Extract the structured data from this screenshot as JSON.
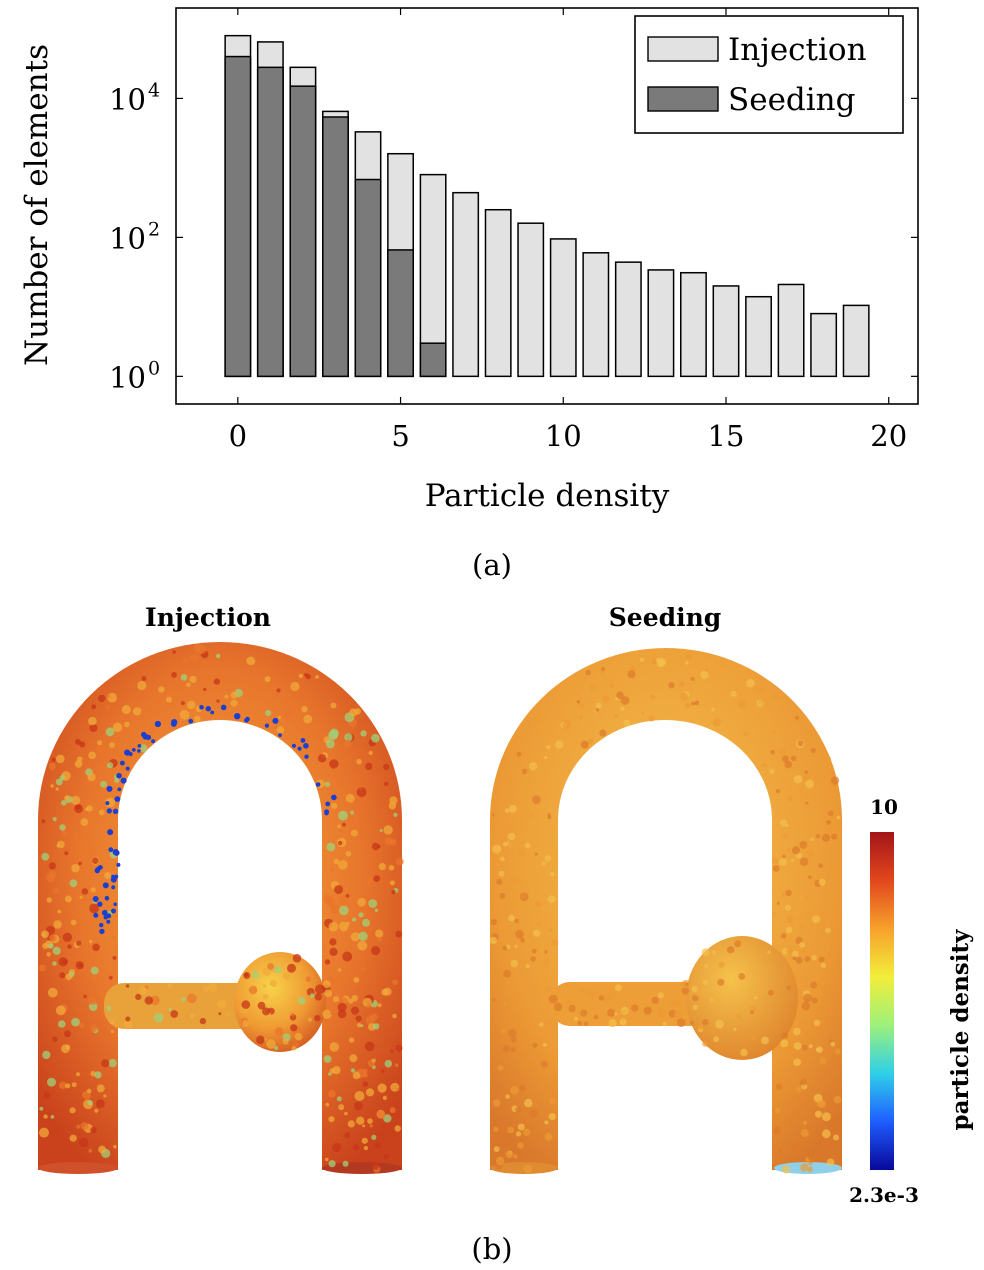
{
  "chart_data": {
    "type": "bar",
    "yscale": "log",
    "xlabel": "Particle density",
    "ylabel": "Number of elements",
    "xlim": [
      -1.9,
      20.9
    ],
    "ylim": [
      0.4,
      200000
    ],
    "xticks": [
      0,
      5,
      10,
      15,
      20
    ],
    "yticks": [
      {
        "value": 1,
        "base": "10",
        "exp": "0"
      },
      {
        "value": 100,
        "base": "10",
        "exp": "2"
      },
      {
        "value": 10000,
        "base": "10",
        "exp": "4"
      }
    ],
    "legend": {
      "position": "top-right"
    },
    "x": [
      0,
      1,
      2,
      3,
      4,
      5,
      6,
      7,
      8,
      9,
      10,
      11,
      12,
      13,
      14,
      15,
      16,
      17,
      18,
      19
    ],
    "series": [
      {
        "name": "Injection",
        "color": "#e2e2e2",
        "values": [
          80000,
          65000,
          28000,
          6500,
          3300,
          1600,
          800,
          440,
          250,
          160,
          95,
          60,
          44,
          34,
          31,
          20,
          14,
          21,
          8,
          10.5
        ]
      },
      {
        "name": "Seeding",
        "color": "#7a7a7a",
        "values": [
          40000,
          28000,
          15000,
          5400,
          680,
          66,
          3,
          null,
          null,
          null,
          null,
          null,
          null,
          null,
          null,
          null,
          null,
          null,
          null,
          null
        ]
      }
    ]
  },
  "captions": {
    "a": "(a)",
    "b": "(b)"
  },
  "renders": {
    "left_title": "Injection",
    "right_title": "Seeding",
    "colorbar": {
      "label": "particle density",
      "max_label": "10",
      "min_label": "2.3e-3",
      "colors": [
        "#08079a",
        "#1f5dff",
        "#2fd0e8",
        "#9ef07a",
        "#f2ee3a",
        "#f7a12c",
        "#e2471d",
        "#a3141a"
      ]
    },
    "colors": {
      "injection_base": "#e9752b",
      "injection_hot": "#c73518",
      "injection_warm": "#f0a93a",
      "injection_cool": "#9fd27a",
      "injection_cold": "#1b3fd0",
      "seeding_base": "#ec9a35",
      "seeding_light": "#f3c14c",
      "seeding_dark": "#dd7a2c"
    }
  }
}
